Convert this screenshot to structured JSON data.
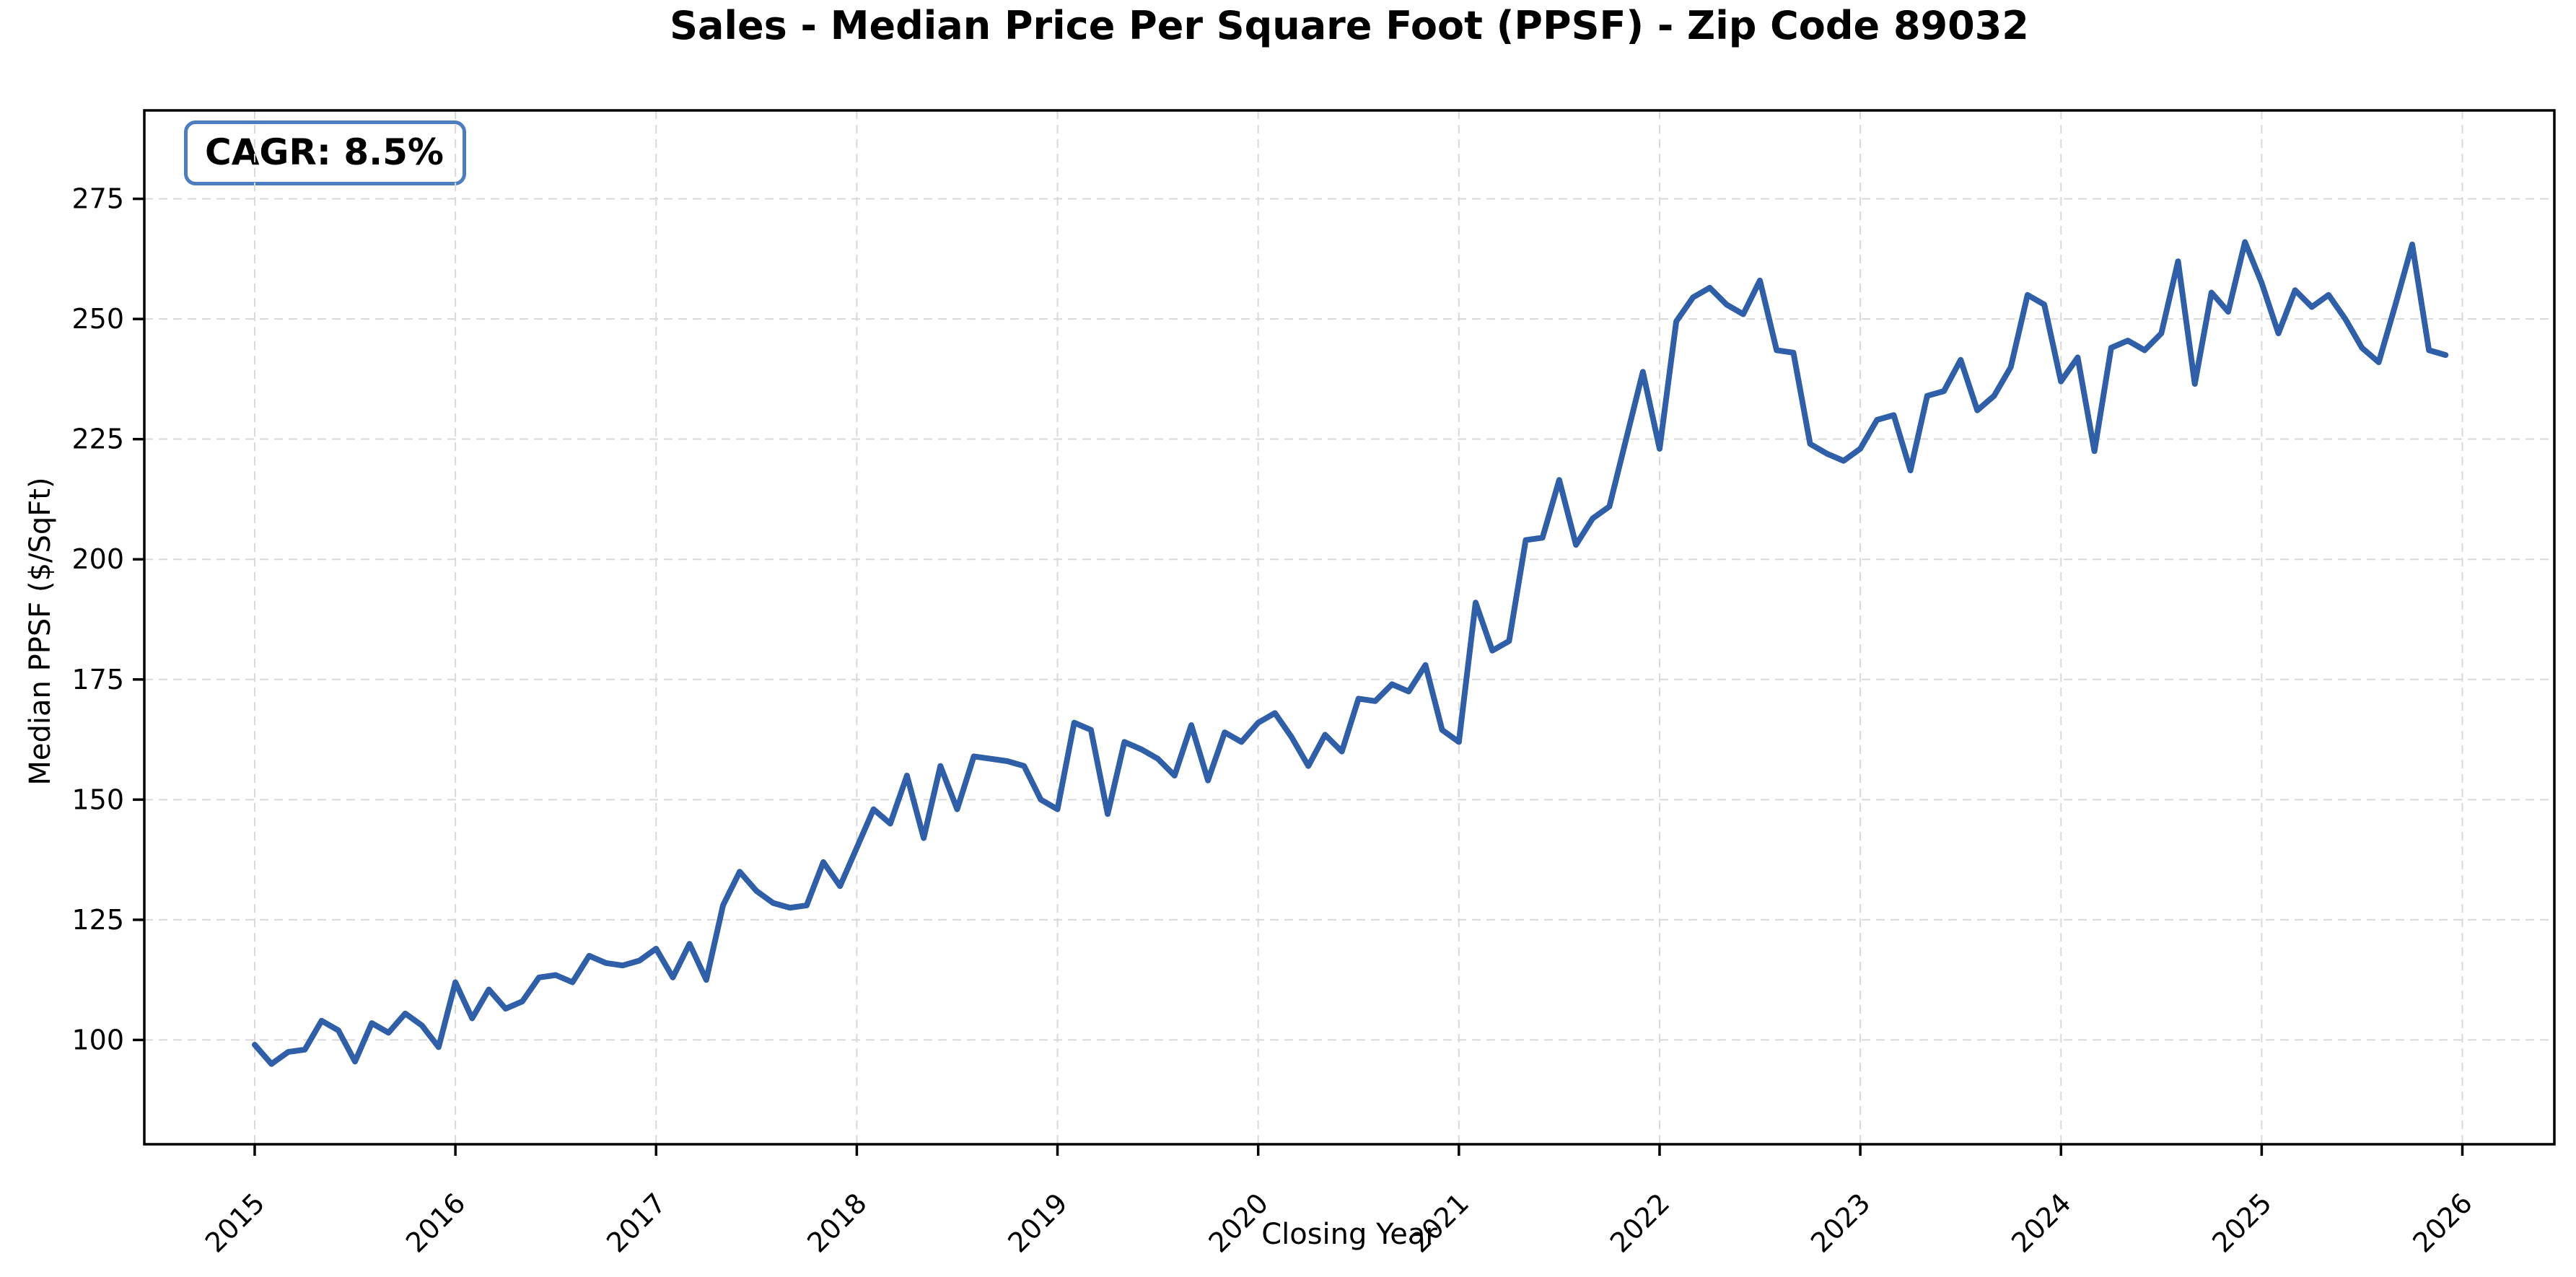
{
  "header": {
    "title": "Sales - Median Price Per Square Foot (PPSF) - Zip Code 89032"
  },
  "annotation": {
    "cagr_label": "CAGR: 8.5%"
  },
  "chart_data": {
    "type": "line",
    "title": "Sales - Median Price Per Square Foot (PPSF) - Zip Code 89032",
    "xlabel": "Closing Year",
    "ylabel": "Median PPSF ($/SqFt)",
    "annotation": "CAGR: 8.5%",
    "grid": true,
    "legend": "none",
    "line_color": "#2e5fa8",
    "grid_color": "#d9d9d9",
    "x_tick_labels": [
      "2015",
      "2016",
      "2017",
      "2018",
      "2019",
      "2020",
      "2021",
      "2022",
      "2023",
      "2024",
      "2025",
      "2026"
    ],
    "y_ticks": [
      100,
      125,
      150,
      175,
      200,
      225,
      250,
      275
    ],
    "xlim_months": [
      -6.6,
      137.5
    ],
    "ylim": [
      78.3,
      293.4
    ],
    "series": [
      {
        "name": "Median PPSF ($/SqFt)",
        "start": "2015-01",
        "frequency": "monthly",
        "values": [
          99,
          95,
          97.5,
          98,
          104,
          102,
          95.5,
          103.5,
          101.5,
          105.5,
          103,
          98.5,
          112,
          104.5,
          110.5,
          106.5,
          108,
          113,
          113.5,
          112,
          117.5,
          116,
          115.5,
          116.5,
          119,
          113,
          120,
          112.5,
          128,
          135,
          131,
          128.5,
          127.5,
          128,
          137,
          132,
          140,
          148,
          145,
          155,
          142,
          157,
          148,
          159,
          158.5,
          158,
          157,
          150,
          148,
          166,
          164.5,
          147,
          162,
          160.5,
          158.5,
          155,
          165.5,
          154,
          164,
          162,
          166,
          168,
          163,
          157,
          163.5,
          160,
          171,
          170.5,
          174,
          172.5,
          178,
          164.5,
          162,
          191,
          181,
          183,
          204,
          204.5,
          216.5,
          203,
          208.5,
          211,
          225,
          239,
          223,
          249.5,
          254.5,
          256.5,
          253,
          251,
          258,
          243.5,
          243,
          224,
          222,
          220.5,
          223,
          229,
          230,
          218.5,
          234,
          235,
          241.5,
          231,
          234,
          240,
          255,
          253,
          237,
          242,
          222.5,
          244,
          245.5,
          243.5,
          247,
          262,
          236.5,
          255.5,
          251.5,
          266,
          257.5,
          247,
          256,
          252.5,
          255,
          250,
          244,
          241,
          253,
          265.5,
          243.5,
          242.5
        ]
      }
    ]
  }
}
